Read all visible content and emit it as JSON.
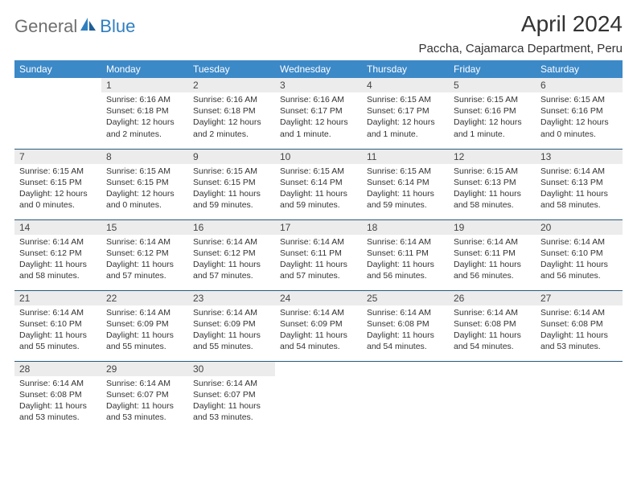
{
  "logo": {
    "general": "General",
    "blue": "Blue"
  },
  "title": "April 2024",
  "location": "Paccha, Cajamarca Department, Peru",
  "day_headers": [
    "Sunday",
    "Monday",
    "Tuesday",
    "Wednesday",
    "Thursday",
    "Friday",
    "Saturday"
  ],
  "colors": {
    "header_bg": "#3c89c8",
    "header_text": "#ffffff",
    "daynum_bg": "#ececec",
    "border": "#2a5a7a",
    "logo_gray": "#6f6f6f",
    "logo_blue": "#2f7fc0"
  },
  "weeks": [
    [
      null,
      {
        "n": "1",
        "sr": "6:16 AM",
        "ss": "6:18 PM",
        "dl": "12 hours and 2 minutes."
      },
      {
        "n": "2",
        "sr": "6:16 AM",
        "ss": "6:18 PM",
        "dl": "12 hours and 2 minutes."
      },
      {
        "n": "3",
        "sr": "6:16 AM",
        "ss": "6:17 PM",
        "dl": "12 hours and 1 minute."
      },
      {
        "n": "4",
        "sr": "6:15 AM",
        "ss": "6:17 PM",
        "dl": "12 hours and 1 minute."
      },
      {
        "n": "5",
        "sr": "6:15 AM",
        "ss": "6:16 PM",
        "dl": "12 hours and 1 minute."
      },
      {
        "n": "6",
        "sr": "6:15 AM",
        "ss": "6:16 PM",
        "dl": "12 hours and 0 minutes."
      }
    ],
    [
      {
        "n": "7",
        "sr": "6:15 AM",
        "ss": "6:15 PM",
        "dl": "12 hours and 0 minutes."
      },
      {
        "n": "8",
        "sr": "6:15 AM",
        "ss": "6:15 PM",
        "dl": "12 hours and 0 minutes."
      },
      {
        "n": "9",
        "sr": "6:15 AM",
        "ss": "6:15 PM",
        "dl": "11 hours and 59 minutes."
      },
      {
        "n": "10",
        "sr": "6:15 AM",
        "ss": "6:14 PM",
        "dl": "11 hours and 59 minutes."
      },
      {
        "n": "11",
        "sr": "6:15 AM",
        "ss": "6:14 PM",
        "dl": "11 hours and 59 minutes."
      },
      {
        "n": "12",
        "sr": "6:15 AM",
        "ss": "6:13 PM",
        "dl": "11 hours and 58 minutes."
      },
      {
        "n": "13",
        "sr": "6:14 AM",
        "ss": "6:13 PM",
        "dl": "11 hours and 58 minutes."
      }
    ],
    [
      {
        "n": "14",
        "sr": "6:14 AM",
        "ss": "6:12 PM",
        "dl": "11 hours and 58 minutes."
      },
      {
        "n": "15",
        "sr": "6:14 AM",
        "ss": "6:12 PM",
        "dl": "11 hours and 57 minutes."
      },
      {
        "n": "16",
        "sr": "6:14 AM",
        "ss": "6:12 PM",
        "dl": "11 hours and 57 minutes."
      },
      {
        "n": "17",
        "sr": "6:14 AM",
        "ss": "6:11 PM",
        "dl": "11 hours and 57 minutes."
      },
      {
        "n": "18",
        "sr": "6:14 AM",
        "ss": "6:11 PM",
        "dl": "11 hours and 56 minutes."
      },
      {
        "n": "19",
        "sr": "6:14 AM",
        "ss": "6:11 PM",
        "dl": "11 hours and 56 minutes."
      },
      {
        "n": "20",
        "sr": "6:14 AM",
        "ss": "6:10 PM",
        "dl": "11 hours and 56 minutes."
      }
    ],
    [
      {
        "n": "21",
        "sr": "6:14 AM",
        "ss": "6:10 PM",
        "dl": "11 hours and 55 minutes."
      },
      {
        "n": "22",
        "sr": "6:14 AM",
        "ss": "6:09 PM",
        "dl": "11 hours and 55 minutes."
      },
      {
        "n": "23",
        "sr": "6:14 AM",
        "ss": "6:09 PM",
        "dl": "11 hours and 55 minutes."
      },
      {
        "n": "24",
        "sr": "6:14 AM",
        "ss": "6:09 PM",
        "dl": "11 hours and 54 minutes."
      },
      {
        "n": "25",
        "sr": "6:14 AM",
        "ss": "6:08 PM",
        "dl": "11 hours and 54 minutes."
      },
      {
        "n": "26",
        "sr": "6:14 AM",
        "ss": "6:08 PM",
        "dl": "11 hours and 54 minutes."
      },
      {
        "n": "27",
        "sr": "6:14 AM",
        "ss": "6:08 PM",
        "dl": "11 hours and 53 minutes."
      }
    ],
    [
      {
        "n": "28",
        "sr": "6:14 AM",
        "ss": "6:08 PM",
        "dl": "11 hours and 53 minutes."
      },
      {
        "n": "29",
        "sr": "6:14 AM",
        "ss": "6:07 PM",
        "dl": "11 hours and 53 minutes."
      },
      {
        "n": "30",
        "sr": "6:14 AM",
        "ss": "6:07 PM",
        "dl": "11 hours and 53 minutes."
      },
      null,
      null,
      null,
      null
    ]
  ],
  "labels": {
    "sunrise": "Sunrise:",
    "sunset": "Sunset:",
    "daylight": "Daylight:"
  }
}
